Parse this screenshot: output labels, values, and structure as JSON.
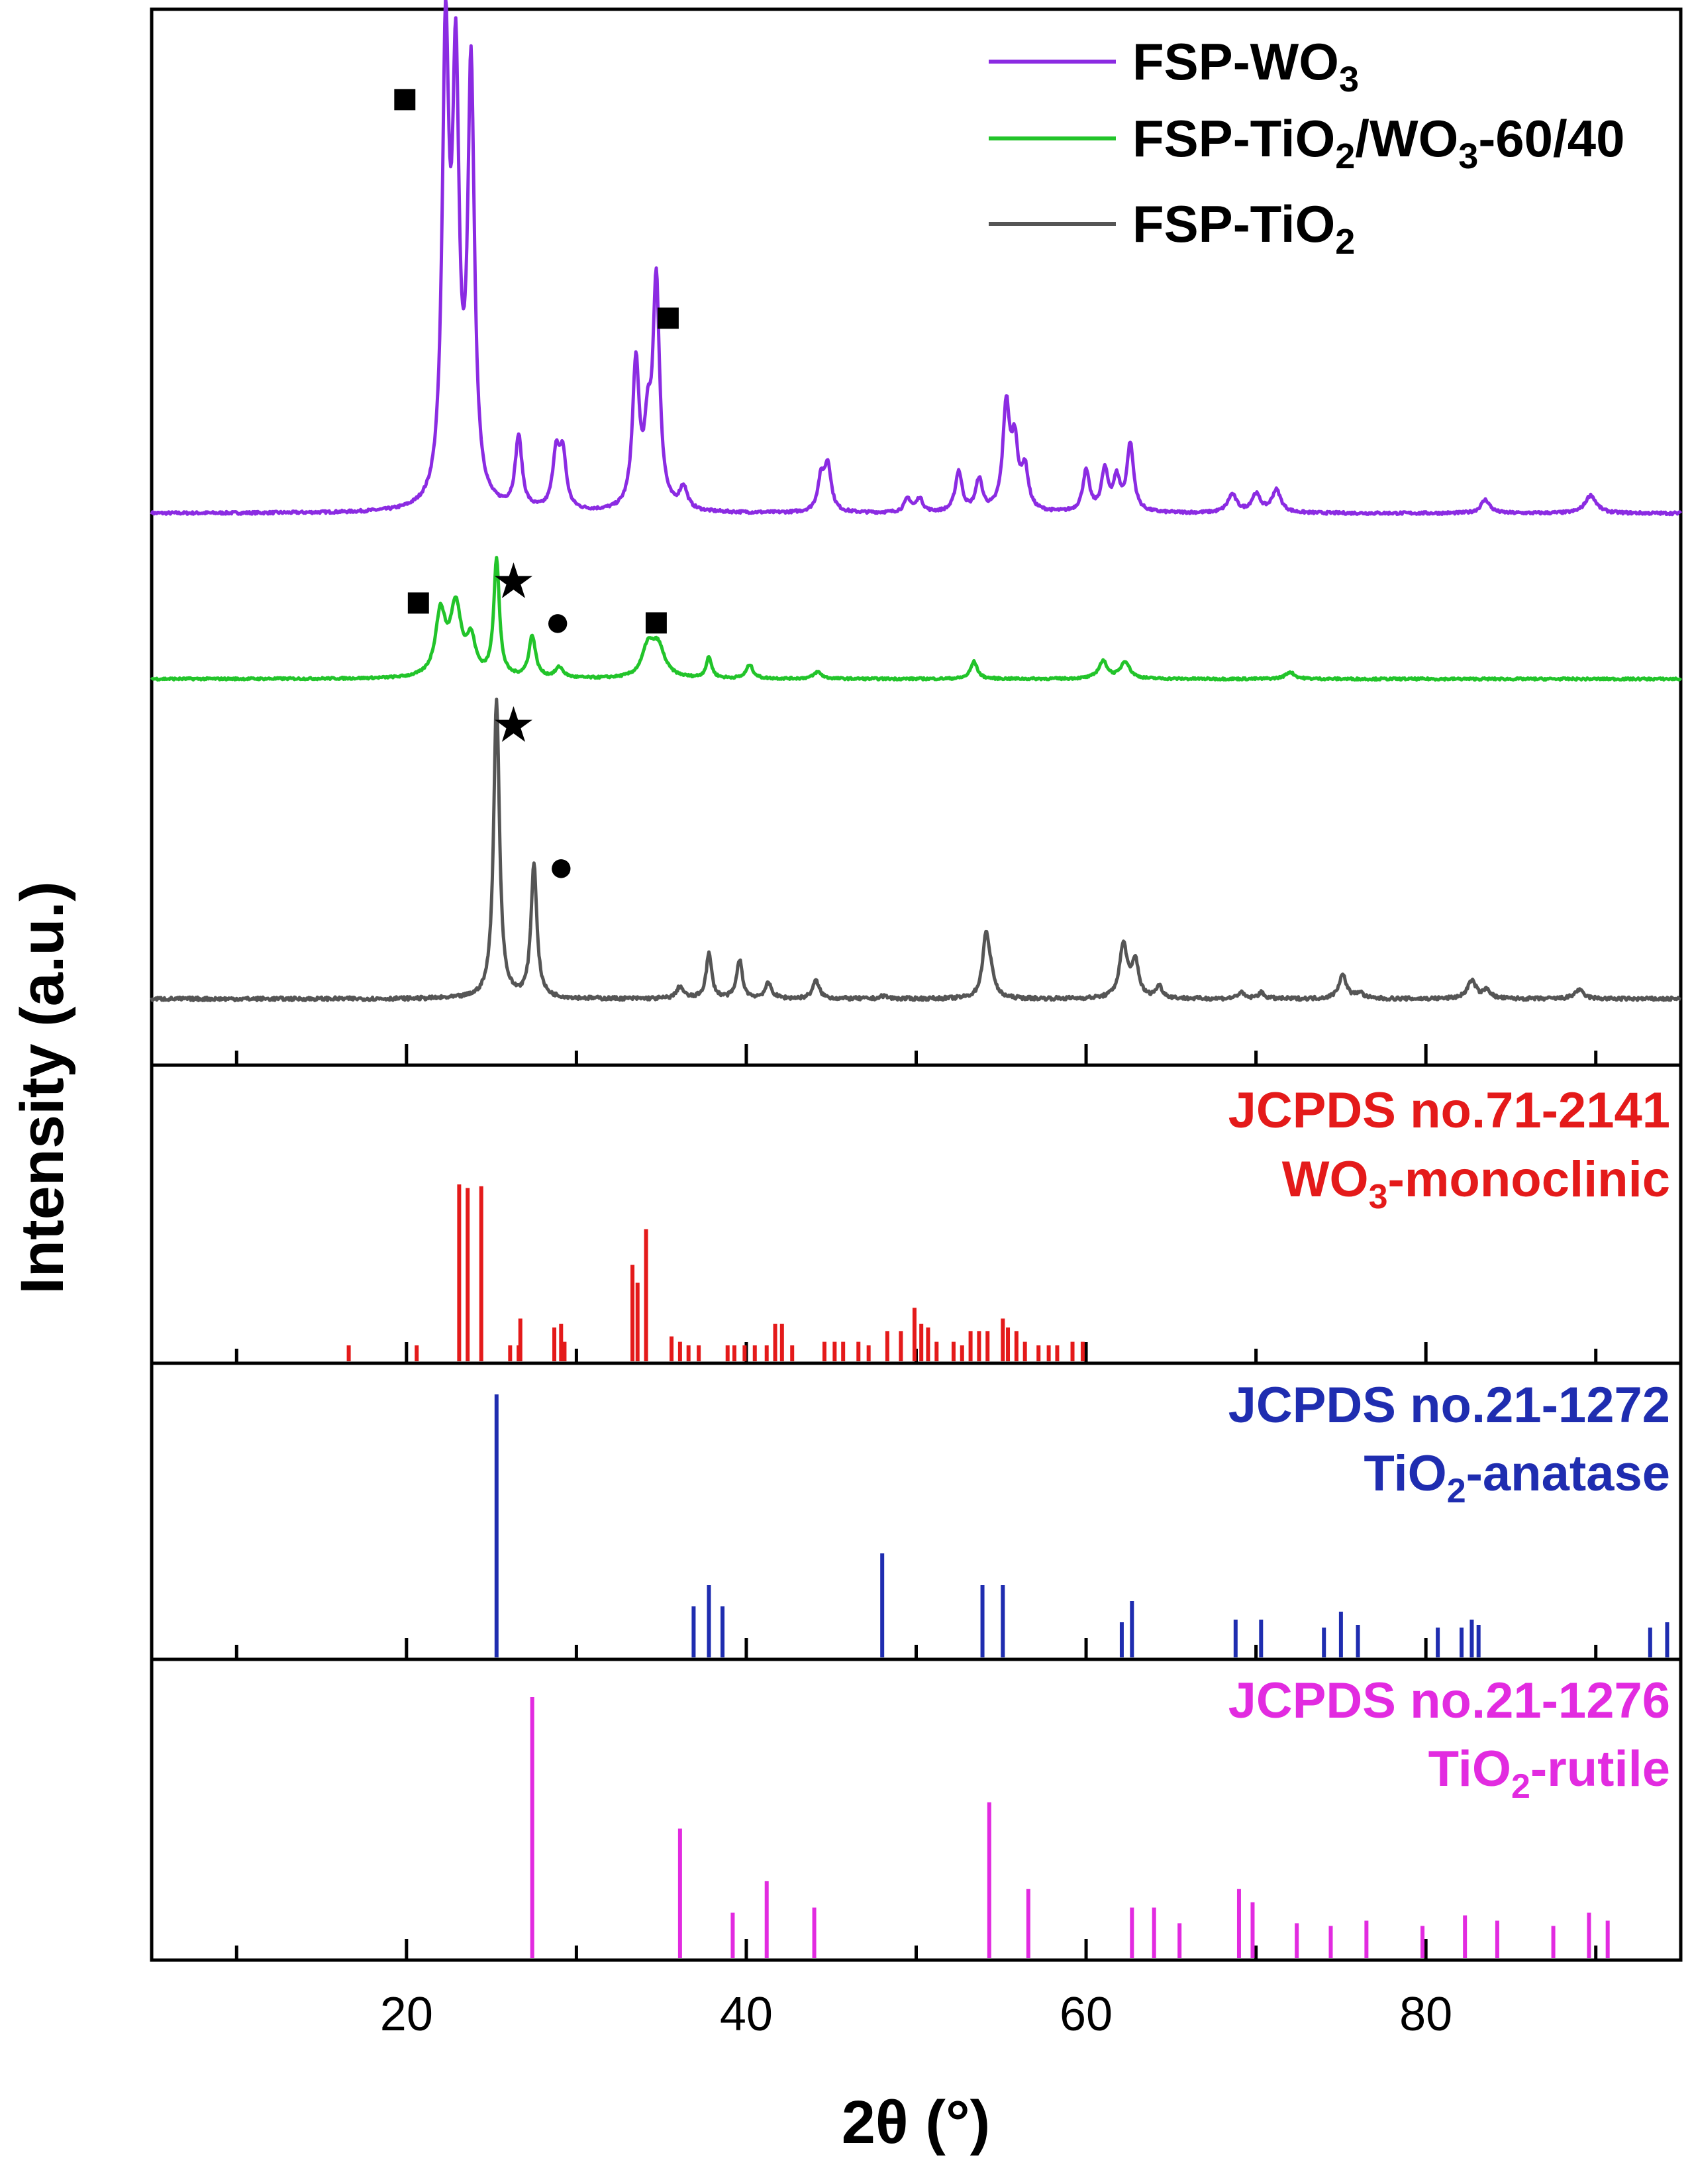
{
  "chart_data": {
    "type": "line",
    "xlabel": "2θ (°)",
    "ylabel": "Intensity (a.u.)",
    "xlim": [
      5,
      95
    ],
    "xticks": [
      {
        "value": 10,
        "label": ""
      },
      {
        "value": 20,
        "label": "20"
      },
      {
        "value": 30,
        "label": ""
      },
      {
        "value": 40,
        "label": "40"
      },
      {
        "value": 50,
        "label": ""
      },
      {
        "value": 60,
        "label": "60"
      },
      {
        "value": 70,
        "label": ""
      },
      {
        "value": 80,
        "label": "80"
      },
      {
        "value": 90,
        "label": ""
      }
    ],
    "legend_position": "top-right",
    "top_panel": {
      "series": [
        {
          "name_prefix": "FSP-WO",
          "name_sub": "3",
          "name_suffix": "",
          "color": "#8B2BE2",
          "baseline": 0.0,
          "noise": 0.003,
          "peaks": [
            [
              22.3,
              1.0,
              0.3
            ],
            [
              22.9,
              0.9,
              0.3
            ],
            [
              23.8,
              0.95,
              0.3
            ],
            [
              26.6,
              0.16,
              0.3
            ],
            [
              28.8,
              0.12,
              0.3
            ],
            [
              29.2,
              0.12,
              0.3
            ],
            [
              33.5,
              0.32,
              0.3
            ],
            [
              34.2,
              0.15,
              0.3
            ],
            [
              34.7,
              0.5,
              0.3
            ],
            [
              36.3,
              0.05,
              0.35
            ],
            [
              44.4,
              0.07,
              0.3
            ],
            [
              44.8,
              0.1,
              0.3
            ],
            [
              49.5,
              0.03,
              0.3
            ],
            [
              50.2,
              0.03,
              0.3
            ],
            [
              52.5,
              0.09,
              0.3
            ],
            [
              53.7,
              0.07,
              0.3
            ],
            [
              55.3,
              0.23,
              0.3
            ],
            [
              55.8,
              0.14,
              0.3
            ],
            [
              56.4,
              0.09,
              0.3
            ],
            [
              60.0,
              0.09,
              0.3
            ],
            [
              61.1,
              0.09,
              0.3
            ],
            [
              61.8,
              0.07,
              0.3
            ],
            [
              62.6,
              0.15,
              0.3
            ],
            [
              68.6,
              0.04,
              0.4
            ],
            [
              70.0,
              0.04,
              0.4
            ],
            [
              71.2,
              0.05,
              0.4
            ],
            [
              83.5,
              0.03,
              0.4
            ],
            [
              89.7,
              0.04,
              0.5
            ]
          ]
        },
        {
          "name_prefix": "FSP-TiO",
          "name_sub": "2",
          "name_suffix": "/WO",
          "name_sub2": "3",
          "name_suffix2": "-60/40",
          "color": "#22C42A",
          "baseline": 0.0,
          "noise": 0.003,
          "peaks": [
            [
              22.0,
              0.18,
              0.45
            ],
            [
              22.9,
              0.2,
              0.5
            ],
            [
              23.8,
              0.1,
              0.4
            ],
            [
              25.3,
              0.34,
              0.25
            ],
            [
              27.4,
              0.12,
              0.3
            ],
            [
              29.0,
              0.03,
              0.35
            ],
            [
              34.2,
              0.08,
              0.5
            ],
            [
              34.8,
              0.09,
              0.6
            ],
            [
              37.8,
              0.06,
              0.25
            ],
            [
              40.2,
              0.04,
              0.3
            ],
            [
              44.2,
              0.02,
              0.35
            ],
            [
              53.4,
              0.05,
              0.3
            ],
            [
              61.0,
              0.05,
              0.4
            ],
            [
              62.3,
              0.05,
              0.4
            ],
            [
              72.0,
              0.02,
              0.4
            ]
          ]
        },
        {
          "name_prefix": "FSP-TiO",
          "name_sub": "2",
          "name_suffix": "",
          "color": "#555555",
          "baseline": 0.0,
          "noise": 0.006,
          "peaks": [
            [
              25.3,
              1.0,
              0.26
            ],
            [
              27.5,
              0.45,
              0.26
            ],
            [
              36.1,
              0.04,
              0.3
            ],
            [
              37.8,
              0.15,
              0.25
            ],
            [
              39.6,
              0.13,
              0.25
            ],
            [
              41.3,
              0.05,
              0.3
            ],
            [
              44.1,
              0.06,
              0.3
            ],
            [
              48.1,
              0.01,
              0.3
            ],
            [
              54.1,
              0.2,
              0.3
            ],
            [
              54.4,
              0.06,
              0.3
            ],
            [
              62.2,
              0.18,
              0.35
            ],
            [
              62.9,
              0.12,
              0.3
            ],
            [
              64.3,
              0.04,
              0.3
            ],
            [
              69.1,
              0.02,
              0.3
            ],
            [
              70.3,
              0.02,
              0.3
            ],
            [
              75.1,
              0.08,
              0.35
            ],
            [
              76.1,
              0.02,
              0.3
            ],
            [
              82.7,
              0.06,
              0.4
            ],
            [
              83.6,
              0.03,
              0.3
            ],
            [
              89.0,
              0.03,
              0.4
            ]
          ]
        }
      ],
      "markers": [
        {
          "symbol": "■",
          "meaning": "WO3",
          "x": 19.9,
          "series": 0
        },
        {
          "symbol": "■",
          "meaning": "WO3",
          "x": 35.4,
          "series": 0
        },
        {
          "symbol": "■",
          "meaning": "WO3",
          "x": 20.7,
          "series": 1
        },
        {
          "symbol": "★",
          "meaning": "anatase",
          "x": 26.3,
          "series": 1
        },
        {
          "symbol": "●",
          "meaning": "rutile",
          "x": 28.9,
          "series": 1
        },
        {
          "symbol": "■",
          "meaning": "WO3",
          "x": 34.7,
          "series": 1
        },
        {
          "symbol": "★",
          "meaning": "anatase",
          "x": 26.3,
          "series": 2
        },
        {
          "symbol": "●",
          "meaning": "rutile",
          "x": 29.1,
          "series": 2
        }
      ]
    },
    "references": [
      {
        "label_line1": "JCPDS no.71-2141",
        "label_line2_prefix": "WO",
        "label_line2_sub": "3",
        "label_line2_suffix": "-monoclinic",
        "color": "#E41A1A",
        "lines": [
          [
            16.6,
            0.1
          ],
          [
            20.6,
            0.1
          ],
          [
            23.1,
            1.0
          ],
          [
            23.6,
            0.98
          ],
          [
            24.4,
            0.99
          ],
          [
            26.1,
            0.1
          ],
          [
            26.6,
            0.1
          ],
          [
            26.7,
            0.25
          ],
          [
            28.7,
            0.2
          ],
          [
            29.1,
            0.22
          ],
          [
            29.3,
            0.12
          ],
          [
            33.3,
            0.55
          ],
          [
            33.6,
            0.45
          ],
          [
            34.1,
            0.75
          ],
          [
            35.6,
            0.15
          ],
          [
            36.1,
            0.12
          ],
          [
            36.6,
            0.1
          ],
          [
            37.2,
            0.1
          ],
          [
            38.9,
            0.1
          ],
          [
            39.3,
            0.1
          ],
          [
            39.9,
            0.1
          ],
          [
            40.5,
            0.1
          ],
          [
            41.2,
            0.1
          ],
          [
            41.7,
            0.22
          ],
          [
            42.1,
            0.22
          ],
          [
            42.7,
            0.1
          ],
          [
            44.6,
            0.12
          ],
          [
            45.2,
            0.12
          ],
          [
            45.7,
            0.12
          ],
          [
            46.6,
            0.12
          ],
          [
            47.2,
            0.1
          ],
          [
            48.3,
            0.18
          ],
          [
            49.1,
            0.18
          ],
          [
            49.9,
            0.31
          ],
          [
            50.3,
            0.22
          ],
          [
            50.7,
            0.2
          ],
          [
            51.2,
            0.12
          ],
          [
            52.2,
            0.12
          ],
          [
            52.7,
            0.1
          ],
          [
            53.2,
            0.18
          ],
          [
            53.7,
            0.18
          ],
          [
            54.2,
            0.18
          ],
          [
            55.1,
            0.25
          ],
          [
            55.4,
            0.2
          ],
          [
            55.9,
            0.18
          ],
          [
            56.4,
            0.12
          ],
          [
            57.2,
            0.1
          ],
          [
            57.8,
            0.1
          ],
          [
            58.3,
            0.1
          ],
          [
            59.2,
            0.12
          ],
          [
            59.8,
            0.12
          ]
        ]
      },
      {
        "label_line1": "JCPDS no.21-1272",
        "label_line2_prefix": "TiO",
        "label_line2_sub": "2",
        "label_line2_suffix": "-anatase",
        "color": "#1F2DB0",
        "lines": [
          [
            25.3,
            1.0
          ],
          [
            36.9,
            0.2
          ],
          [
            37.8,
            0.28
          ],
          [
            38.6,
            0.2
          ],
          [
            48.0,
            0.4
          ],
          [
            53.9,
            0.28
          ],
          [
            55.1,
            0.28
          ],
          [
            62.1,
            0.14
          ],
          [
            62.7,
            0.22
          ],
          [
            68.8,
            0.15
          ],
          [
            70.3,
            0.15
          ],
          [
            74.0,
            0.12
          ],
          [
            75.0,
            0.18
          ],
          [
            76.0,
            0.13
          ],
          [
            80.7,
            0.12
          ],
          [
            82.1,
            0.12
          ],
          [
            82.7,
            0.15
          ],
          [
            83.1,
            0.13
          ],
          [
            93.2,
            0.12
          ],
          [
            94.2,
            0.14
          ]
        ]
      },
      {
        "label_line1": "JCPDS no.21-1276",
        "label_line2_prefix": "TiO",
        "label_line2_sub": "2",
        "label_line2_suffix": "-rutile",
        "color": "#E22BE0",
        "lines": [
          [
            27.4,
            1.0
          ],
          [
            36.1,
            0.5
          ],
          [
            39.2,
            0.18
          ],
          [
            41.2,
            0.3
          ],
          [
            44.0,
            0.2
          ],
          [
            54.3,
            0.6
          ],
          [
            56.6,
            0.27
          ],
          [
            62.7,
            0.2
          ],
          [
            64.0,
            0.2
          ],
          [
            65.5,
            0.14
          ],
          [
            69.0,
            0.27
          ],
          [
            69.8,
            0.22
          ],
          [
            72.4,
            0.14
          ],
          [
            74.4,
            0.13
          ],
          [
            76.5,
            0.15
          ],
          [
            79.8,
            0.13
          ],
          [
            82.3,
            0.17
          ],
          [
            84.2,
            0.15
          ],
          [
            87.5,
            0.13
          ],
          [
            89.6,
            0.18
          ],
          [
            90.7,
            0.15
          ]
        ]
      }
    ]
  }
}
